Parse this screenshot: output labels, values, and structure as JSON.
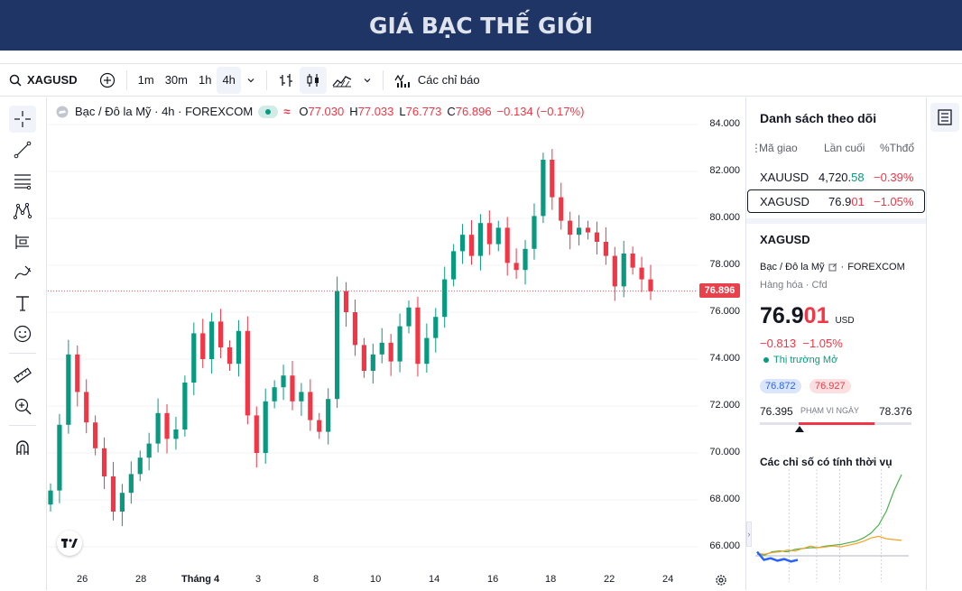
{
  "banner": {
    "title": "GIÁ BẠC THẾ GIỚI"
  },
  "toolbar": {
    "symbol": "XAGUSD",
    "intervals": [
      "1m",
      "30m",
      "1h",
      "4h"
    ],
    "active_interval": "4h",
    "indicators_label": "Các chỉ báo"
  },
  "legend": {
    "name": "Bạc / Đô la Mỹ · 4h · FOREXCOM",
    "o_label": "O",
    "o_val": "77.030",
    "h_label": "H",
    "h_val": "77.033",
    "l_label": "L",
    "l_val": "76.773",
    "c_label": "C",
    "c_val": "76.896",
    "change": "−0.134 (−0.17%)"
  },
  "price_axis": [
    "84.000",
    "82.000",
    "80.000",
    "78.000",
    "76.000",
    "74.000",
    "72.000",
    "70.000",
    "68.000",
    "66.000"
  ],
  "last_price": "76.896",
  "time_axis": [
    "26",
    "28",
    "Tháng 4",
    "3",
    "8",
    "10",
    "14",
    "16",
    "18",
    "22",
    "24"
  ],
  "watchlist": {
    "title": "Danh sách theo dõi",
    "col_symbol": "Mã giao",
    "col_last": "Lần cuối",
    "col_change": "%Thđổ",
    "rows": [
      {
        "symbol": "XAUUSD",
        "last_main": "4,720.",
        "last_tail": "58",
        "change": "−0.39%"
      },
      {
        "symbol": "XAGUSD",
        "last_main": "76.9",
        "last_tail": "01",
        "change": "−1.05%"
      }
    ]
  },
  "detail": {
    "symbol": "XAGUSD",
    "name": "Bạc / Đô la Mỹ",
    "exchange": "FOREXCOM",
    "category": "Hàng hóa",
    "type": "Cfd",
    "price_main": "76.9",
    "price_tail": "01",
    "currency": "USD",
    "change_abs": "−0.813",
    "change_pct": "−1.05%",
    "market_status": "Thị trường Mở",
    "bid": "76.872",
    "ask": "76.927",
    "range_low": "76.395",
    "range_label": "PHẠM VI NGÀY",
    "range_high": "78.376",
    "seasonal_title": "Các chỉ số có tính thời vụ"
  },
  "colors": {
    "up": "#089981",
    "down": "#f23645",
    "banner": "#1f3566"
  },
  "chart_data": {
    "type": "candlestick",
    "ylim": [
      65,
      85
    ],
    "price_labels": [
      84,
      82,
      80,
      78,
      76,
      74,
      72,
      70,
      68,
      66
    ],
    "closes": [
      68.4,
      71.2,
      74.2,
      72.6,
      71.3,
      70.2,
      69.0,
      67.5,
      68.3,
      69.1,
      69.8,
      70.4,
      71.7,
      70.6,
      71.0,
      73.0,
      75.1,
      74.0,
      75.6,
      74.5,
      73.8,
      75.2,
      71.6,
      70.0,
      72.2,
      72.8,
      73.3,
      72.2,
      72.6,
      71.4,
      70.9,
      72.3,
      76.9,
      76.0,
      74.6,
      73.5,
      74.2,
      74.7,
      73.9,
      75.4,
      76.2,
      73.8,
      74.9,
      75.8,
      77.4,
      78.6,
      79.3,
      78.4,
      79.8,
      78.9,
      79.6,
      78.1,
      77.8,
      78.7,
      80.1,
      82.5,
      80.9,
      79.9,
      79.3,
      79.6,
      79.4,
      79.0,
      78.4,
      77.1,
      78.5,
      77.9,
      77.4,
      76.9
    ],
    "series": [
      {
        "name": "XAGUSD",
        "values": [
          68.4,
          71.2,
          74.2,
          72.6,
          71.3,
          70.2,
          69.0,
          67.5,
          68.3,
          69.1,
          69.8,
          70.4,
          71.7,
          70.6,
          71.0,
          73.0,
          75.1,
          74.0,
          75.6,
          74.5,
          73.8,
          75.2,
          71.6,
          70.0,
          72.2,
          72.8,
          73.3,
          72.2,
          72.6,
          71.4,
          70.9,
          72.3,
          76.9,
          76.0,
          74.6,
          73.5,
          74.2,
          74.7,
          73.9,
          75.4,
          76.2,
          73.8,
          74.9,
          75.8,
          77.4,
          78.6,
          79.3,
          78.4,
          79.8,
          78.9,
          79.6,
          78.1,
          77.8,
          78.7,
          80.1,
          82.5,
          80.9,
          79.9,
          79.3,
          79.6,
          79.4,
          79.0,
          78.4,
          77.1,
          78.5,
          77.9,
          77.4,
          76.9
        ]
      }
    ],
    "x_labels": [
      "26",
      "28",
      "Tháng 4",
      "3",
      "8",
      "10",
      "14",
      "16",
      "18",
      "22",
      "24"
    ],
    "last": 76.896
  },
  "seasonal_data": {
    "series": [
      {
        "name": "green",
        "values": [
          0.02,
          0.01,
          0.05,
          0.06,
          0.05,
          0.08,
          0.09,
          0.1,
          0.1,
          0.12,
          0.13,
          0.14,
          0.16,
          0.18,
          0.22,
          0.28,
          0.38,
          0.55,
          0.8,
          1.0
        ]
      },
      {
        "name": "orange",
        "values": [
          0.03,
          0.02,
          0.04,
          0.05,
          0.07,
          0.06,
          0.09,
          0.12,
          0.1,
          0.11,
          0.12,
          0.11,
          0.13,
          0.15,
          0.18,
          0.22,
          0.24,
          0.21,
          0.2,
          0.19
        ]
      },
      {
        "name": "blue",
        "values": [
          0.05,
          -0.05,
          -0.03,
          -0.06,
          -0.04,
          -0.07,
          -0.05
        ]
      }
    ]
  }
}
